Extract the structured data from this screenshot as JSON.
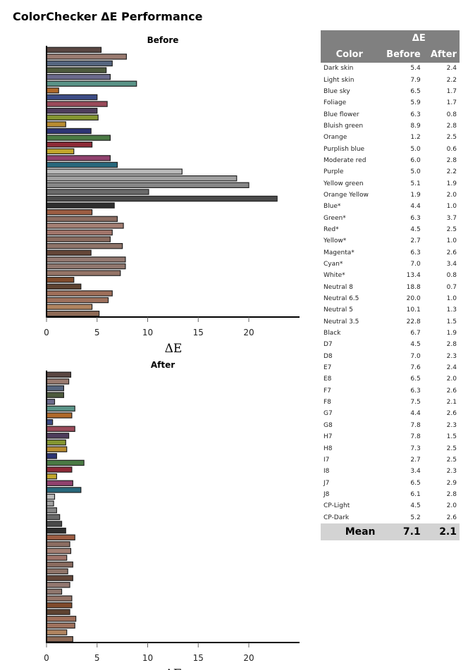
{
  "title": "ColorChecker ΔE Performance",
  "table": {
    "group_header": "ΔE",
    "col_color": "Color",
    "col_before": "Before",
    "col_after": "After",
    "mean_label": "Mean",
    "mean_before": "7.1",
    "mean_after": "2.1"
  },
  "chart_data": [
    {
      "type": "bar",
      "title": "Before",
      "xlabel": "ΔE",
      "xlim": [
        0,
        25
      ],
      "xticks": [
        0,
        5,
        10,
        15,
        20
      ],
      "series_key": "before"
    },
    {
      "type": "bar",
      "title": "After",
      "xlabel": "ΔE",
      "xlim": [
        0,
        25
      ],
      "xticks": [
        0,
        5,
        10,
        15,
        20
      ],
      "series_key": "after"
    }
  ],
  "patches": [
    {
      "name": "Dark skin",
      "before": 5.4,
      "after": 2.4,
      "color": "#5a4742"
    },
    {
      "name": "Light skin",
      "before": 7.9,
      "after": 2.2,
      "color": "#9a7b70"
    },
    {
      "name": "Blue sky",
      "before": 6.5,
      "after": 1.7,
      "color": "#55657f"
    },
    {
      "name": "Foliage",
      "before": 5.9,
      "after": 1.7,
      "color": "#4d5a3d"
    },
    {
      "name": "Blue flower",
      "before": 6.3,
      "after": 0.8,
      "color": "#6b6a8c"
    },
    {
      "name": "Bluish green",
      "before": 8.9,
      "after": 2.8,
      "color": "#5a9387"
    },
    {
      "name": "Orange",
      "before": 1.2,
      "after": 2.5,
      "color": "#b0692a"
    },
    {
      "name": "Purplish blue",
      "before": 5.0,
      "after": 0.6,
      "color": "#3d4c85"
    },
    {
      "name": "Moderate red",
      "before": 6.0,
      "after": 2.8,
      "color": "#9a4a5a"
    },
    {
      "name": "Purple",
      "before": 5.0,
      "after": 2.2,
      "color": "#4e3d5c"
    },
    {
      "name": "Yellow green",
      "before": 5.1,
      "after": 1.9,
      "color": "#849531"
    },
    {
      "name": "Orange Yellow",
      "before": 1.9,
      "after": 2.0,
      "color": "#b88c31"
    },
    {
      "name": "Blue*",
      "before": 4.4,
      "after": 1.0,
      "color": "#2d3474"
    },
    {
      "name": "Green*",
      "before": 6.3,
      "after": 3.7,
      "color": "#4a7a44"
    },
    {
      "name": "Red*",
      "before": 4.5,
      "after": 2.5,
      "color": "#8d2a37"
    },
    {
      "name": "Yellow*",
      "before": 2.7,
      "after": 1.0,
      "color": "#c2a62b"
    },
    {
      "name": "Magenta*",
      "before": 6.3,
      "after": 2.6,
      "color": "#91416e"
    },
    {
      "name": "Cyan*",
      "before": 7.0,
      "after": 3.4,
      "color": "#28687c"
    },
    {
      "name": "White*",
      "before": 13.4,
      "after": 0.8,
      "color": "#b9b9b9"
    },
    {
      "name": "Neutral 8",
      "before": 18.8,
      "after": 0.7,
      "color": "#a0a0a0"
    },
    {
      "name": "Neutral 6.5",
      "before": 20.0,
      "after": 1.0,
      "color": "#878787"
    },
    {
      "name": "Neutral 5",
      "before": 10.1,
      "after": 1.3,
      "color": "#6a6a6a"
    },
    {
      "name": "Neutral 3.5",
      "before": 22.8,
      "after": 1.5,
      "color": "#4a4a4a"
    },
    {
      "name": "Black",
      "before": 6.7,
      "after": 1.9,
      "color": "#2e2e2e"
    },
    {
      "name": "D7",
      "before": 4.5,
      "after": 2.8,
      "color": "#9c5d43"
    },
    {
      "name": "D8",
      "before": 7.0,
      "after": 2.3,
      "color": "#8c6d62"
    },
    {
      "name": "E7",
      "before": 7.6,
      "after": 2.4,
      "color": "#a47f73"
    },
    {
      "name": "E8",
      "before": 6.5,
      "after": 2.0,
      "color": "#a0746a"
    },
    {
      "name": "F7",
      "before": 6.3,
      "after": 2.6,
      "color": "#8a6b5f"
    },
    {
      "name": "F8",
      "before": 7.5,
      "after": 2.1,
      "color": "#8f7469"
    },
    {
      "name": "G7",
      "before": 4.4,
      "after": 2.6,
      "color": "#644638"
    },
    {
      "name": "G8",
      "before": 7.8,
      "after": 2.3,
      "color": "#937870"
    },
    {
      "name": "H7",
      "before": 7.8,
      "after": 1.5,
      "color": "#8f766d"
    },
    {
      "name": "H8",
      "before": 7.3,
      "after": 2.5,
      "color": "#957467"
    },
    {
      "name": "I7",
      "before": 2.7,
      "after": 2.5,
      "color": "#7f4b2d"
    },
    {
      "name": "I8",
      "before": 3.4,
      "after": 2.3,
      "color": "#5e4331"
    },
    {
      "name": "J7",
      "before": 6.5,
      "after": 2.9,
      "color": "#9f6f5a"
    },
    {
      "name": "J8",
      "before": 6.1,
      "after": 2.8,
      "color": "#9e715d"
    },
    {
      "name": "CP-Light",
      "before": 4.5,
      "after": 2.0,
      "color": "#b08460"
    },
    {
      "name": "CP-Dark",
      "before": 5.2,
      "after": 2.6,
      "color": "#8e6a56"
    }
  ]
}
